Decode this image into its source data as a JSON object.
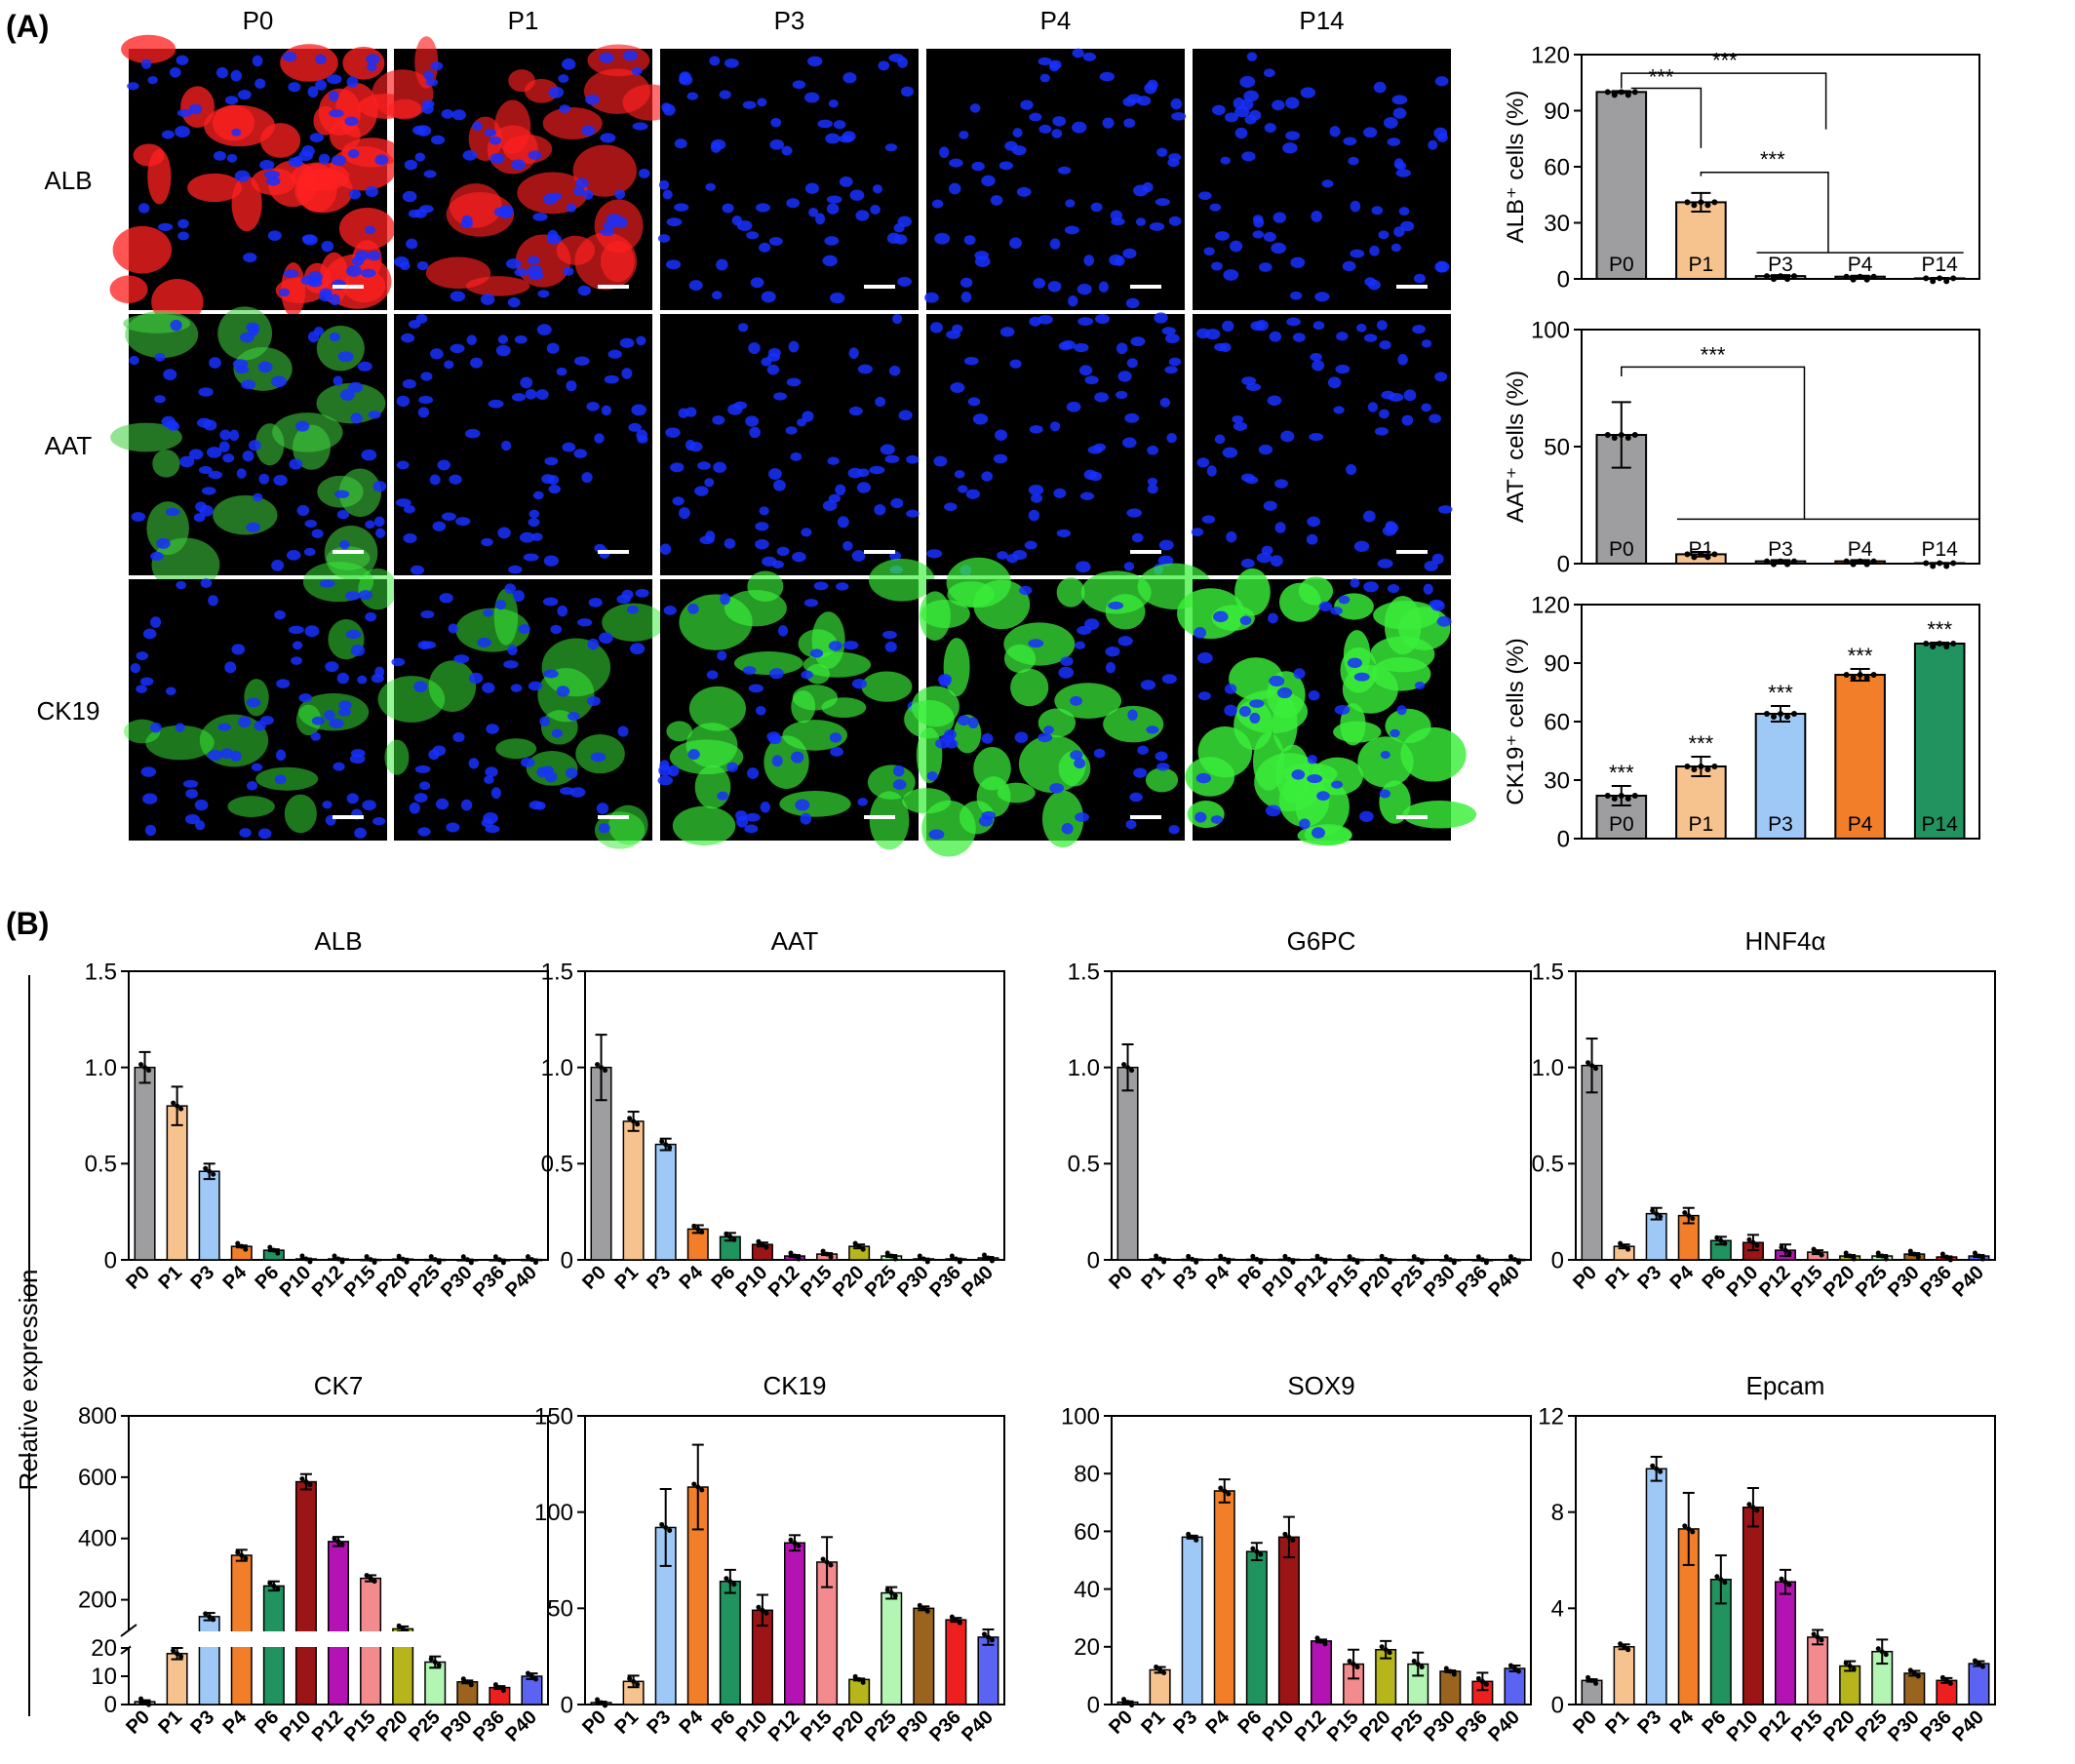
{
  "panels": {
    "A": {
      "label": "(A)",
      "columns": [
        "P0",
        "P1",
        "P3",
        "P4",
        "P14"
      ],
      "rows": [
        "ALB",
        "AAT",
        "CK19"
      ],
      "row_colors": {
        "ALB": "#ff2020",
        "AAT": "#40d040",
        "CK19": "#3aee3a"
      },
      "nuclei_color": "#1830ff",
      "signal_level": [
        [
          0.85,
          0.6,
          0.03,
          0.02,
          0.0
        ],
        [
          0.45,
          0.04,
          0.02,
          0.01,
          0.0
        ],
        [
          0.3,
          0.35,
          0.6,
          0.75,
          0.95
        ]
      ]
    },
    "B": {
      "label": "(B)",
      "ylabel": "Relative expression"
    }
  },
  "chart_data": [
    {
      "type": "bar",
      "panel": "A",
      "categories": [
        "P0",
        "P1",
        "P3",
        "P4",
        "P14"
      ],
      "values": [
        100,
        41,
        1.5,
        1.2,
        0.3
      ],
      "errors": [
        0.5,
        5,
        0.5,
        0.5,
        0.2
      ],
      "ylabel": "ALB⁺ cells (%)",
      "ylim": [
        0,
        120
      ],
      "yticks": [
        0,
        30,
        60,
        90,
        120
      ],
      "colors": [
        "#9e9ea0",
        "#f6c28e",
        "#9ec8f6",
        "#f27e2a",
        "#21935f"
      ],
      "annotations": [
        "***",
        "***",
        "***"
      ]
    },
    {
      "type": "bar",
      "panel": "A",
      "categories": [
        "P0",
        "P1",
        "P3",
        "P4",
        "P14"
      ],
      "values": [
        55,
        4,
        1,
        1,
        0.2
      ],
      "errors": [
        14,
        1,
        0.5,
        0.5,
        0.1
      ],
      "ylabel": "AAT⁺ cells (%)",
      "ylim": [
        0,
        100
      ],
      "yticks": [
        0,
        50,
        100
      ],
      "colors": [
        "#9e9ea0",
        "#f6c28e",
        "#9ec8f6",
        "#f27e2a",
        "#21935f"
      ],
      "annotations": [
        "***"
      ]
    },
    {
      "type": "bar",
      "panel": "A",
      "categories": [
        "P0",
        "P1",
        "P3",
        "P4",
        "P14"
      ],
      "values": [
        22,
        37,
        64,
        84,
        100
      ],
      "errors": [
        5,
        5,
        4,
        3,
        0.5
      ],
      "ylabel": "CK19⁺ cells (%)",
      "ylim": [
        0,
        120
      ],
      "yticks": [
        0,
        30,
        60,
        90,
        120
      ],
      "colors": [
        "#9e9ea0",
        "#f6c28e",
        "#9ec8f6",
        "#f27e2a",
        "#21935f"
      ],
      "annotations": [
        "***",
        "***",
        "***",
        "***",
        "***"
      ]
    },
    {
      "type": "bar",
      "panel": "B",
      "title": "ALB",
      "categories": [
        "P0",
        "P1",
        "P3",
        "P4",
        "P6",
        "P10",
        "P12",
        "P15",
        "P20",
        "P25",
        "P30",
        "P36",
        "P40"
      ],
      "values": [
        1.0,
        0.8,
        0.46,
        0.07,
        0.05,
        0.005,
        0.005,
        0.002,
        0.004,
        0.002,
        0.001,
        0.001,
        0.002
      ],
      "errors": [
        0.08,
        0.1,
        0.04,
        0.005,
        0.005,
        0.002,
        0.002,
        0.001,
        0.002,
        0.001,
        0.001,
        0.001,
        0.001
      ],
      "ylim": [
        0,
        1.5
      ],
      "yticks": [
        "0",
        "0.5",
        "1.0",
        "1.5"
      ]
    },
    {
      "type": "bar",
      "panel": "B",
      "title": "AAT",
      "categories": [
        "P0",
        "P1",
        "P3",
        "P4",
        "P6",
        "P10",
        "P12",
        "P15",
        "P20",
        "P25",
        "P30",
        "P36",
        "P40"
      ],
      "values": [
        1.0,
        0.72,
        0.6,
        0.16,
        0.12,
        0.08,
        0.02,
        0.03,
        0.07,
        0.02,
        0.005,
        0.005,
        0.01
      ],
      "errors": [
        0.17,
        0.05,
        0.03,
        0.02,
        0.02,
        0.01,
        0.005,
        0.005,
        0.01,
        0.005,
        0.002,
        0.002,
        0.005
      ],
      "ylim": [
        0,
        1.5
      ],
      "yticks": [
        "0",
        "0.5",
        "1.0",
        "1.5"
      ]
    },
    {
      "type": "bar",
      "panel": "B",
      "title": "G6PC",
      "categories": [
        "P0",
        "P1",
        "P3",
        "P4",
        "P6",
        "P10",
        "P12",
        "P15",
        "P20",
        "P25",
        "P30",
        "P36",
        "P40"
      ],
      "values": [
        1.0,
        0.005,
        0.003,
        0.004,
        0.003,
        0.003,
        0.004,
        0.002,
        0.003,
        0.002,
        0.001,
        0.001,
        0.002
      ],
      "errors": [
        0.12,
        0.002,
        0.001,
        0.002,
        0.001,
        0.001,
        0.002,
        0.001,
        0.001,
        0.001,
        0.001,
        0.001,
        0.001
      ],
      "ylim": [
        0,
        1.5
      ],
      "yticks": [
        "0",
        "0.5",
        "1.0",
        "1.5"
      ]
    },
    {
      "type": "bar",
      "panel": "B",
      "title": "HNF4α",
      "categories": [
        "P0",
        "P1",
        "P3",
        "P4",
        "P6",
        "P10",
        "P12",
        "P15",
        "P20",
        "P25",
        "P30",
        "P36",
        "P40"
      ],
      "values": [
        1.01,
        0.07,
        0.24,
        0.23,
        0.1,
        0.09,
        0.05,
        0.04,
        0.02,
        0.02,
        0.03,
        0.015,
        0.02
      ],
      "errors": [
        0.14,
        0.01,
        0.03,
        0.04,
        0.02,
        0.04,
        0.03,
        0.01,
        0.005,
        0.005,
        0.005,
        0.003,
        0.005
      ],
      "ylim": [
        0,
        1.5
      ],
      "yticks": [
        "0",
        "0.5",
        "1.0",
        "1.5"
      ]
    },
    {
      "type": "bar",
      "panel": "B",
      "title": "CK7",
      "categories": [
        "P0",
        "P1",
        "P3",
        "P4",
        "P6",
        "P10",
        "P12",
        "P15",
        "P20",
        "P25",
        "P30",
        "P36",
        "P40"
      ],
      "values": [
        1,
        18,
        145,
        345,
        245,
        585,
        390,
        270,
        105,
        15,
        8,
        6,
        10
      ],
      "errors": [
        0.5,
        2,
        12,
        18,
        15,
        25,
        15,
        10,
        8,
        2,
        0.5,
        0.5,
        1
      ],
      "y_axis_break": [
        20,
        100
      ],
      "lower_ylim": [
        0,
        20
      ],
      "upper_ylim": [
        100,
        800
      ],
      "yticks_lower": [
        "0",
        "10",
        "20"
      ],
      "yticks_upper": [
        "200",
        "400",
        "600",
        "800"
      ]
    },
    {
      "type": "bar",
      "panel": "B",
      "title": "CK19",
      "categories": [
        "P0",
        "P1",
        "P3",
        "P4",
        "P6",
        "P10",
        "P12",
        "P15",
        "P20",
        "P25",
        "P30",
        "P36",
        "P40"
      ],
      "values": [
        1,
        12,
        92,
        113,
        64,
        49,
        84,
        74,
        13,
        58,
        50,
        44,
        35
      ],
      "errors": [
        0.5,
        3,
        20,
        22,
        6,
        8,
        4,
        13,
        0.5,
        3,
        1,
        1,
        4
      ],
      "ylim": [
        0,
        150
      ],
      "yticks": [
        "0",
        "50",
        "100",
        "150"
      ]
    },
    {
      "type": "bar",
      "panel": "B",
      "title": "SOX9",
      "categories": [
        "P0",
        "P1",
        "P3",
        "P4",
        "P6",
        "P10",
        "P12",
        "P15",
        "P20",
        "P25",
        "P30",
        "P36",
        "P40"
      ],
      "values": [
        0.8,
        12,
        58,
        74,
        53,
        58,
        22,
        14,
        19,
        14,
        11.5,
        8,
        12.5
      ],
      "errors": [
        0.3,
        1,
        0.5,
        4,
        3,
        7,
        0.5,
        5,
        3,
        4,
        0.3,
        3,
        1
      ],
      "ylim": [
        0,
        100
      ],
      "yticks": [
        "0",
        "20",
        "40",
        "60",
        "80",
        "100"
      ]
    },
    {
      "type": "bar",
      "panel": "B",
      "title": "Epcam",
      "categories": [
        "P0",
        "P1",
        "P3",
        "P4",
        "P6",
        "P10",
        "P12",
        "P15",
        "P20",
        "P25",
        "P30",
        "P36",
        "P40"
      ],
      "values": [
        1.0,
        2.4,
        9.8,
        7.3,
        5.2,
        8.2,
        5.1,
        2.8,
        1.6,
        2.2,
        1.3,
        1.0,
        1.7
      ],
      "errors": [
        0.05,
        0.1,
        0.5,
        1.5,
        1.0,
        0.8,
        0.5,
        0.3,
        0.2,
        0.5,
        0.1,
        0.1,
        0.1
      ],
      "ylim": [
        0,
        12
      ],
      "yticks": [
        "0",
        "4",
        "8",
        "12"
      ]
    }
  ],
  "palette_B": [
    "#9e9ea0",
    "#f6c28e",
    "#9ec8f6",
    "#f27e2a",
    "#21935f",
    "#9b1416",
    "#b413b4",
    "#f28a8e",
    "#b6b61c",
    "#b3f5b3",
    "#9b641e",
    "#ee1f1f",
    "#5a63f2"
  ]
}
